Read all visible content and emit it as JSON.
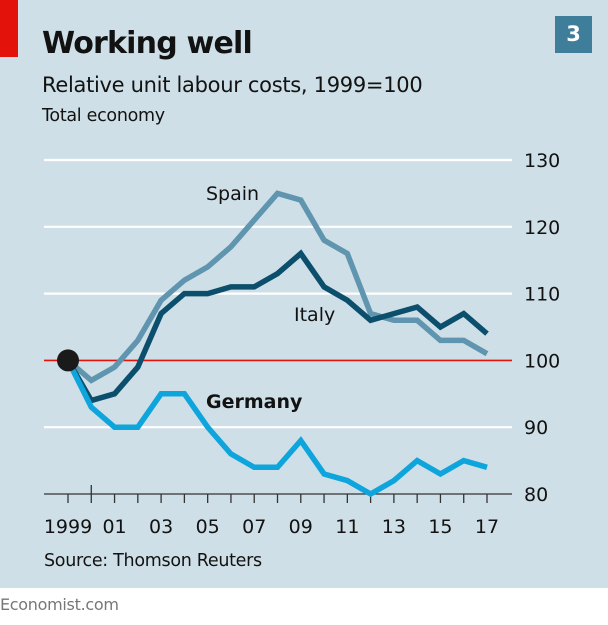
{
  "header": {
    "title": "Working well",
    "subtitle": "Relative unit labour costs, 1999=100",
    "subsubtitle": "Total economy",
    "chart_number": "3"
  },
  "footer": {
    "source": "Source: Thomson Reuters",
    "brand": "Economist.com"
  },
  "colors": {
    "panel_bg": "#cfdfe7",
    "accent_red": "#e3120b",
    "badge_bg": "#3f7e9b",
    "gridline": "#ffffff",
    "baseline": "#e3120b",
    "marker": "#1a1a1a"
  },
  "chart_data": {
    "type": "line",
    "title": "Working well",
    "subtitle": "Relative unit labour costs, 1999=100",
    "note": "Total economy",
    "xlabel": "",
    "ylabel": "",
    "x": [
      1999,
      2000,
      2001,
      2002,
      2003,
      2004,
      2005,
      2006,
      2007,
      2008,
      2009,
      2010,
      2011,
      2012,
      2013,
      2014,
      2015,
      2016,
      2017
    ],
    "x_tick_labels": [
      {
        "year": 1999,
        "label": "1999"
      },
      {
        "year": 2001,
        "label": "01"
      },
      {
        "year": 2003,
        "label": "03"
      },
      {
        "year": 2005,
        "label": "05"
      },
      {
        "year": 2007,
        "label": "07"
      },
      {
        "year": 2009,
        "label": "09"
      },
      {
        "year": 2011,
        "label": "11"
      },
      {
        "year": 2013,
        "label": "13"
      },
      {
        "year": 2015,
        "label": "15"
      },
      {
        "year": 2017,
        "label": "17"
      }
    ],
    "ylim": [
      80,
      130
    ],
    "y_ticks": [
      80,
      90,
      100,
      110,
      120,
      130
    ],
    "y_axis_side": "right",
    "grid": true,
    "reference_line": 100,
    "base_marker": {
      "x": 1999,
      "y": 100
    },
    "series": [
      {
        "name": "Spain",
        "color": "#5f95ae",
        "label_bold": false,
        "values": [
          100,
          97,
          99,
          103,
          109,
          112,
          114,
          117,
          121,
          125,
          124,
          118,
          116,
          107,
          106,
          106,
          103,
          103,
          101
        ]
      },
      {
        "name": "Italy",
        "color": "#0b4f6c",
        "label_bold": false,
        "values": [
          100,
          94,
          95,
          99,
          107,
          110,
          110,
          111,
          111,
          113,
          116,
          111,
          109,
          106,
          107,
          108,
          105,
          107,
          104
        ]
      },
      {
        "name": "Germany",
        "color": "#0ea5dd",
        "label_bold": true,
        "values": [
          100,
          93,
          90,
          90,
          95,
          95,
          90,
          86,
          84,
          84,
          88,
          83,
          82,
          80,
          82,
          85,
          83,
          85,
          84
        ]
      }
    ],
    "legend": "inline labels near lines"
  }
}
